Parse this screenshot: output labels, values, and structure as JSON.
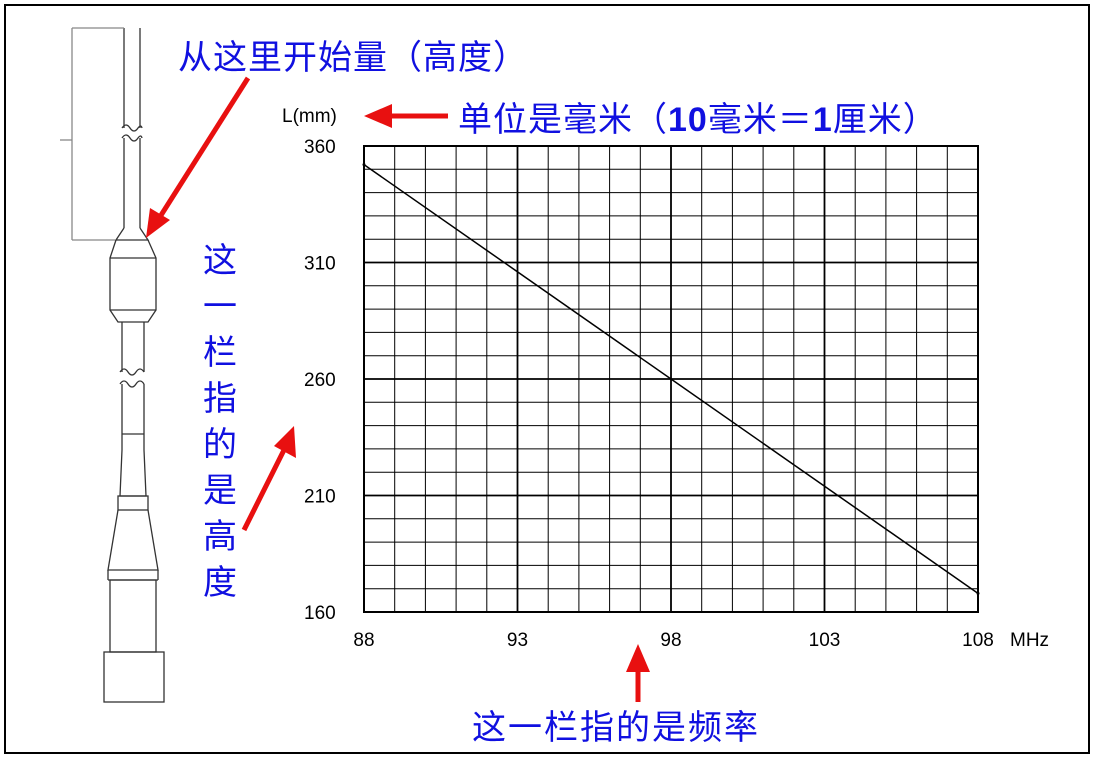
{
  "annotations": {
    "measure_from": "从这里开始量（高度）",
    "unit_prefix": "单位是毫米（",
    "unit_10": "10",
    "unit_mid": "毫米＝",
    "unit_1": "1",
    "unit_suffix": "厘米）",
    "vertical_column": "这一栏指的是高度",
    "frequency_column": "这一栏指的是频率"
  },
  "colors": {
    "annotation_text": "#1010e0",
    "arrow": "#e81010",
    "grid": "#000000"
  },
  "chart_data": {
    "type": "line",
    "title": "",
    "ylabel": "L(mm)",
    "xlabel": "MHz",
    "xlim": [
      88,
      108
    ],
    "ylim": [
      160,
      360
    ],
    "x_ticks": [
      88,
      93,
      98,
      103,
      108
    ],
    "y_ticks": [
      360,
      310,
      260,
      210,
      160
    ],
    "minor_x_step": 1,
    "minor_y_step": 10,
    "grid": true,
    "series": [
      {
        "x": [
          88,
          108
        ],
        "y": [
          352,
          168
        ]
      }
    ]
  }
}
